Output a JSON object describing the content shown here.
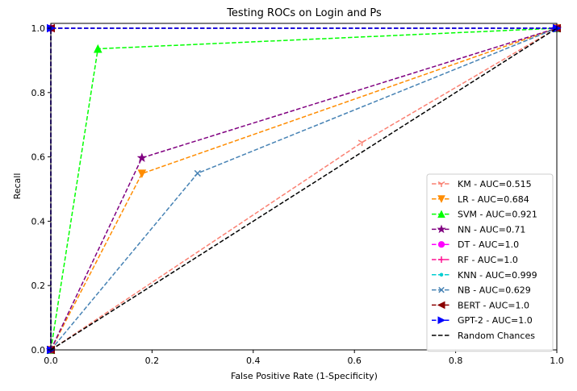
{
  "chart_data": {
    "type": "line",
    "title": "Testing ROCs on Login and Ps",
    "xlabel": "False Positive Rate (1-Specificity)",
    "ylabel": "Recall",
    "xlim": [
      0.0,
      1.0
    ],
    "ylim": [
      0.0,
      1.0
    ],
    "xticks": [
      "0.0",
      "0.2",
      "0.4",
      "0.6",
      "0.8",
      "1.0"
    ],
    "yticks": [
      "0.0",
      "0.2",
      "0.4",
      "0.6",
      "0.8",
      "1.0"
    ],
    "grid": false,
    "legend_position": "lower-right",
    "series": [
      {
        "name": "KM - AUC=0.515",
        "color": "#fa8072",
        "marker": "tri_down",
        "x": [
          0.0,
          0.615,
          1.0
        ],
        "y": [
          0.0,
          0.645,
          1.0
        ]
      },
      {
        "name": "LR - AUC=0.684",
        "color": "#ff8c00",
        "marker": "triangle_down",
        "x": [
          0.0,
          0.18,
          1.0
        ],
        "y": [
          0.0,
          0.548,
          1.0
        ]
      },
      {
        "name": "SVM - AUC=0.921",
        "color": "#00ff00",
        "marker": "triangle_up",
        "x": [
          0.0,
          0.093,
          1.0
        ],
        "y": [
          0.0,
          0.936,
          1.0
        ]
      },
      {
        "name": "NN - AUC=0.71",
        "color": "#800080",
        "marker": "star",
        "x": [
          0.0,
          0.18,
          1.0
        ],
        "y": [
          0.0,
          0.597,
          1.0
        ]
      },
      {
        "name": "DT - AUC=1.0",
        "color": "#ff00ff",
        "marker": "circle",
        "x": [
          0.0,
          0.0,
          1.0
        ],
        "y": [
          0.0,
          1.0,
          1.0
        ]
      },
      {
        "name": "RF - AUC=1.0",
        "color": "#ff1493",
        "marker": "plus",
        "x": [
          0.0,
          0.0,
          1.0
        ],
        "y": [
          0.0,
          1.0,
          1.0
        ]
      },
      {
        "name": "KNN - AUC=0.999",
        "color": "#00ced1",
        "marker": "point",
        "x": [
          0.0,
          0.0,
          1.0
        ],
        "y": [
          0.0,
          1.0,
          1.0
        ]
      },
      {
        "name": "NB - AUC=0.629",
        "color": "#4682b4",
        "marker": "x",
        "x": [
          0.0,
          0.29,
          1.0
        ],
        "y": [
          0.0,
          0.549,
          1.0
        ]
      },
      {
        "name": "BERT - AUC=1.0",
        "color": "#8b0000",
        "marker": "triangle_left",
        "x": [
          0.0,
          0.0,
          1.0
        ],
        "y": [
          0.0,
          1.0,
          1.0
        ]
      },
      {
        "name": "GPT-2 - AUC=1.0",
        "color": "#0000ff",
        "marker": "triangle_right",
        "x": [
          0.0,
          0.0,
          1.0
        ],
        "y": [
          0.0,
          1.0,
          1.0
        ]
      },
      {
        "name": "Random Chances",
        "color": "#000000",
        "marker": "none",
        "x": [
          0.0,
          1.0
        ],
        "y": [
          0.0,
          1.0
        ]
      }
    ]
  }
}
